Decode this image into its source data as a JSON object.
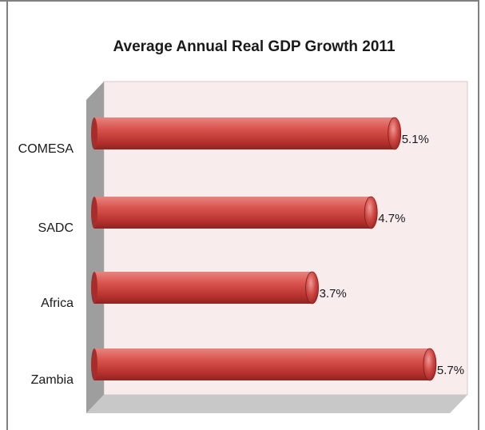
{
  "chart_data": {
    "type": "bar",
    "orientation": "horizontal",
    "title": "Average Annual  Real GDP Growth 2011",
    "categories": [
      "COMESA",
      "SADC",
      "Africa",
      "Zambia"
    ],
    "values": [
      5.1,
      4.7,
      3.7,
      5.7
    ],
    "value_labels": [
      "5.1%",
      "4.7%",
      "3.7%",
      "5.7%"
    ],
    "xlim": [
      0,
      6
    ],
    "grid": false,
    "legend": "none",
    "xlabel": "",
    "ylabel": "",
    "colors": {
      "bar": "#c0392b",
      "bar_highlight": "#e57373",
      "plot_background": "#f9ecec",
      "side_wall": "#9e9e9e",
      "floor": "#c8c8c8",
      "frame_border": "#808080"
    }
  }
}
